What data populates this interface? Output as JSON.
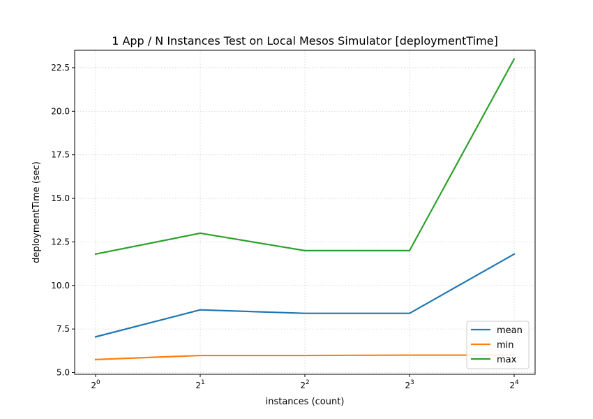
{
  "chart_data": {
    "type": "line",
    "title": "1 App / N Instances Test on Local Mesos Simulator [deploymentTime]",
    "xlabel": "instances (count)",
    "ylabel": "deploymentTime (sec)",
    "x": [
      1,
      2,
      4,
      8,
      16
    ],
    "x_scale": "log2",
    "x_tick_labels": [
      {
        "base": "2",
        "exp": "0"
      },
      {
        "base": "2",
        "exp": "1"
      },
      {
        "base": "2",
        "exp": "2"
      },
      {
        "base": "2",
        "exp": "3"
      },
      {
        "base": "2",
        "exp": "4"
      }
    ],
    "ylim": [
      4.9,
      23.5
    ],
    "y_ticks": [
      5.0,
      7.5,
      10.0,
      12.5,
      15.0,
      17.5,
      20.0,
      22.5
    ],
    "y_tick_labels": [
      "5.0",
      "7.5",
      "10.0",
      "12.5",
      "15.0",
      "17.5",
      "20.0",
      "22.5"
    ],
    "grid": true,
    "legend_position": "lower-right",
    "series": [
      {
        "name": "mean",
        "color": "#1f77b4",
        "values": [
          7.05,
          8.6,
          8.4,
          8.4,
          11.8
        ]
      },
      {
        "name": "min",
        "color": "#ff7f0e",
        "values": [
          5.75,
          5.98,
          5.98,
          6.0,
          6.0
        ]
      },
      {
        "name": "max",
        "color": "#2ca02c",
        "values": [
          11.8,
          13.0,
          12.0,
          12.0,
          23.0
        ]
      }
    ]
  }
}
